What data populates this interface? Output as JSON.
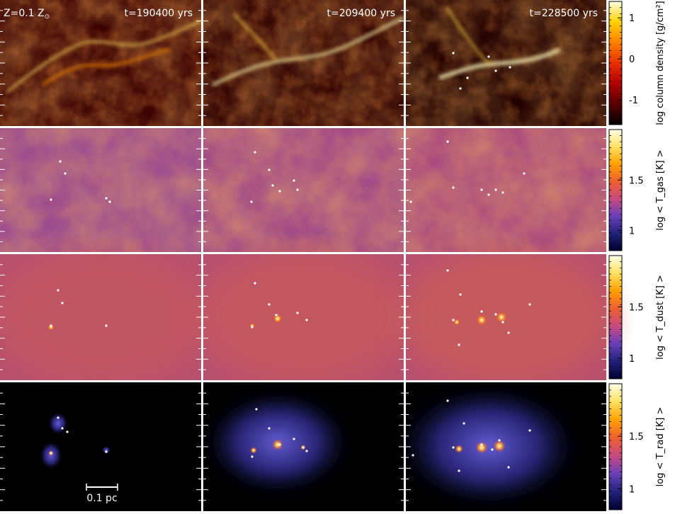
{
  "metallicity_label": "Z=0.1 Z",
  "metallicity_symbol": "⊙",
  "time_labels": [
    "t=190400 yrs",
    "t=209400 yrs",
    "t=228500 yrs"
  ],
  "scale_bar_label": "0.1 pc",
  "colorbars": [
    {
      "label": "log column density [g/cm²]",
      "ticks": [
        "1",
        "0",
        "-1"
      ],
      "tick_values": [
        1,
        0,
        -1
      ],
      "range": [
        -1.6,
        1.4
      ],
      "colormap": "hot"
    },
    {
      "label": "log < T_gas [K] >",
      "ticks": [
        "1.5",
        "1"
      ],
      "tick_values": [
        1.5,
        1
      ],
      "range": [
        0.8,
        2.0
      ],
      "colormap": "CMRmap"
    },
    {
      "label": "log < T_dust [K] >",
      "ticks": [
        "1.5",
        "1"
      ],
      "tick_values": [
        1.5,
        1
      ],
      "range": [
        0.8,
        2.0
      ],
      "colormap": "CMRmap"
    },
    {
      "label": "log < T_rad [K] >",
      "ticks": [
        "1.5",
        "1"
      ],
      "tick_values": [
        1.5,
        1
      ],
      "range": [
        0.8,
        2.0
      ],
      "colormap": "CMRmap"
    }
  ],
  "colors": {
    "hot_stops": [
      "#000000",
      "#5a0000",
      "#b00000",
      "#e83000",
      "#ff8000",
      "#ffd000",
      "#ffffe0"
    ],
    "temp_stops": [
      "#000030",
      "#22227a",
      "#6a40b8",
      "#c84a80",
      "#f06030",
      "#ffa000",
      "#ffe060",
      "#ffffe8"
    ],
    "separator": "#ffffff",
    "star": "#ffffff"
  }
}
